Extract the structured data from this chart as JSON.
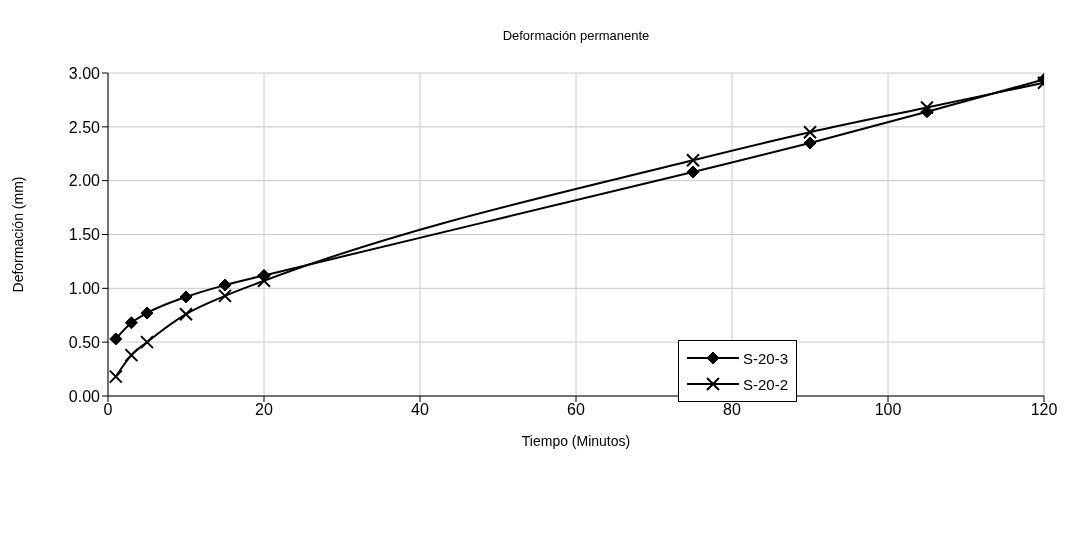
{
  "chart_data": {
    "type": "line",
    "title": "Deformación permanente",
    "xlabel": "Tiempo (Minutos)",
    "ylabel": "Deformación (mm)",
    "x": [
      1,
      3,
      5,
      10,
      15,
      20,
      75,
      90,
      105,
      120
    ],
    "series": [
      {
        "name": "S-20-3",
        "color": "#000000",
        "marker": "diamond",
        "values": [
          0.53,
          0.68,
          0.77,
          0.92,
          1.03,
          1.12,
          2.08,
          2.35,
          2.64,
          2.94
        ]
      },
      {
        "name": "S-20-2",
        "color": "#000000",
        "marker": "cross",
        "values": [
          0.18,
          0.38,
          0.5,
          0.76,
          0.93,
          1.07,
          2.19,
          2.45,
          2.68,
          2.91
        ]
      }
    ],
    "xlim": [
      0,
      120
    ],
    "xticks": [
      0,
      20,
      40,
      60,
      80,
      100,
      120
    ],
    "ylim": [
      0,
      3
    ],
    "yticks": [
      {
        "value": 0,
        "label": "0.00"
      },
      {
        "value": 0.5,
        "label": "0.50"
      },
      {
        "value": 1,
        "label": "1.00"
      },
      {
        "value": 1.5,
        "label": "1.50"
      },
      {
        "value": 2,
        "label": "2.00"
      },
      {
        "value": 2.5,
        "label": "2.50"
      },
      {
        "value": 3,
        "label": "3.00"
      }
    ],
    "grid": true,
    "legend": "bottom right",
    "line_style": "solid"
  }
}
